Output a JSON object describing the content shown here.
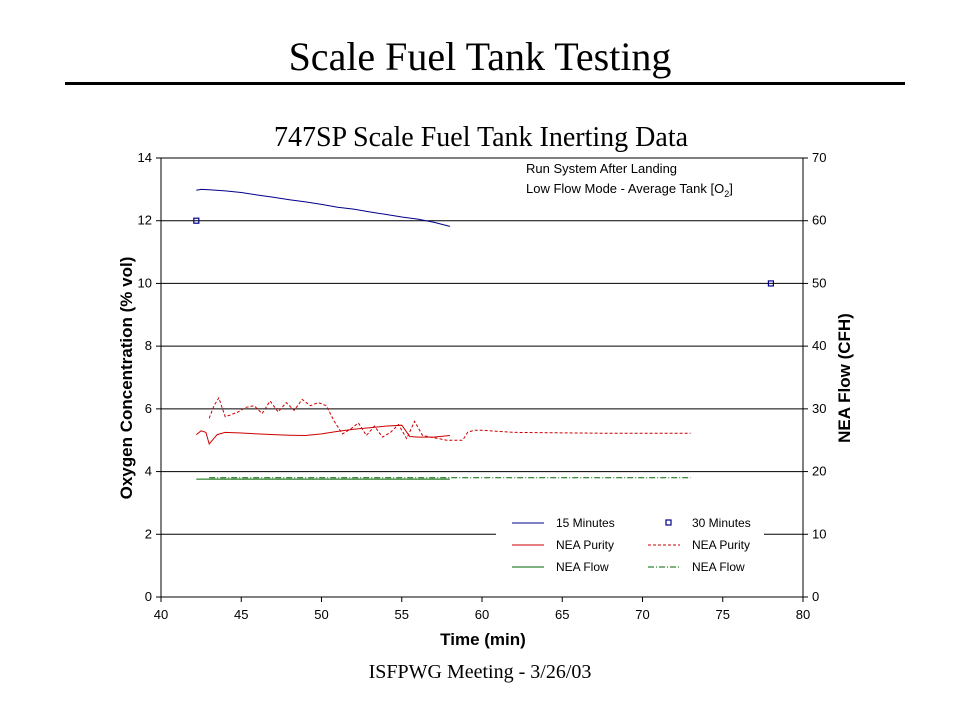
{
  "slide": {
    "title": "Scale Fuel Tank Testing",
    "footer": "ISFPWG Meeting - 3/26/03"
  },
  "chart_data": {
    "type": "line",
    "title": "747SP Scale Fuel Tank Inerting Data",
    "xlabel": "Time (min)",
    "ylabel": "Oxygen Concentration (% vol)",
    "y2label": "NEA Flow (CFH)",
    "xlim": [
      40,
      80
    ],
    "ylim": [
      0,
      14
    ],
    "y2lim": [
      0,
      70
    ],
    "xticks": [
      40,
      45,
      50,
      55,
      60,
      65,
      70,
      75,
      80
    ],
    "yticks": [
      0,
      2,
      4,
      6,
      8,
      10,
      12,
      14
    ],
    "y2ticks": [
      0,
      10,
      20,
      30,
      40,
      50,
      60,
      70
    ],
    "grid": "horizontal",
    "annotation": [
      "Run System After Landing",
      "Low Flow Mode - Average Tank [O",
      "2",
      "]"
    ],
    "legend_position": "bottom-right",
    "series": [
      {
        "name": "15 Minutes",
        "axis": "left",
        "color": "#00008b",
        "style": "solid",
        "x": [
          42.2,
          42.5,
          43,
          44,
          45,
          46,
          47,
          48,
          49,
          50,
          51,
          52,
          53,
          54,
          55,
          56,
          57,
          58
        ],
        "y": [
          12.97,
          13.0,
          12.99,
          12.95,
          12.9,
          12.82,
          12.75,
          12.67,
          12.6,
          12.52,
          12.43,
          12.37,
          12.28,
          12.2,
          12.12,
          12.05,
          11.95,
          11.82
        ]
      },
      {
        "name": "30 Minutes",
        "axis": "left",
        "color": "#00008b",
        "style": "marker",
        "x": [
          42.2,
          78
        ],
        "y": [
          12.0,
          10.0
        ]
      },
      {
        "name": "NEA Purity",
        "axis": "left",
        "color": "#cc0000",
        "style": "solid",
        "x": [
          42.2,
          42.5,
          42.8,
          43.0,
          43.2,
          43.5,
          44,
          45,
          46,
          47,
          48,
          49,
          50,
          51,
          52,
          53,
          54,
          55,
          55.5,
          56,
          57,
          58
        ],
        "y": [
          5.18,
          5.3,
          5.25,
          4.88,
          5.0,
          5.18,
          5.25,
          5.23,
          5.2,
          5.18,
          5.16,
          5.15,
          5.2,
          5.28,
          5.35,
          5.4,
          5.45,
          5.48,
          5.12,
          5.1,
          5.1,
          5.15
        ]
      },
      {
        "name": "NEA Purity",
        "axis": "left",
        "color": "#cc0000",
        "style": "dashed",
        "x": [
          43.0,
          43.3,
          43.6,
          44.0,
          44.3,
          44.8,
          45.3,
          45.8,
          46.3,
          46.8,
          47.3,
          47.8,
          48.3,
          48.8,
          49.3,
          49.8,
          50.3,
          50.8,
          51.3,
          51.8,
          52.3,
          52.8,
          53.3,
          53.8,
          54.3,
          54.8,
          55.3,
          55.8,
          56.3,
          56.8,
          57.3,
          57.8,
          58.3,
          58.8,
          59.1,
          59.5,
          60,
          61,
          62,
          64,
          66,
          68,
          70,
          72,
          73
        ],
        "y": [
          5.7,
          6.1,
          6.35,
          5.75,
          5.8,
          5.9,
          6.05,
          6.1,
          5.85,
          6.25,
          5.9,
          6.2,
          5.95,
          6.3,
          6.1,
          6.2,
          6.1,
          5.6,
          5.2,
          5.35,
          5.55,
          5.15,
          5.45,
          5.1,
          5.25,
          5.5,
          5.05,
          5.6,
          5.15,
          5.1,
          5.05,
          5.0,
          5.0,
          5.0,
          5.25,
          5.32,
          5.32,
          5.28,
          5.25,
          5.24,
          5.23,
          5.22,
          5.22,
          5.22,
          5.22
        ]
      },
      {
        "name": "NEA Flow",
        "axis": "right",
        "color": "#006400",
        "style": "solid",
        "x": [
          42.2,
          58
        ],
        "y": [
          18.8,
          18.8
        ]
      },
      {
        "name": "NEA Flow",
        "axis": "right",
        "color": "#006400",
        "style": "dashdot",
        "x": [
          43,
          73
        ],
        "y": [
          19.0,
          19.0
        ]
      }
    ],
    "legend": [
      {
        "label": "15 Minutes",
        "color": "#00008b",
        "style": "solid"
      },
      {
        "label": "30 Minutes",
        "color": "#00008b",
        "style": "marker"
      },
      {
        "label": "NEA Purity",
        "color": "#cc0000",
        "style": "solid"
      },
      {
        "label": "NEA Purity",
        "color": "#cc0000",
        "style": "dashed"
      },
      {
        "label": "NEA Flow",
        "color": "#006400",
        "style": "solid"
      },
      {
        "label": "NEA Flow",
        "color": "#006400",
        "style": "dashdot"
      }
    ]
  }
}
